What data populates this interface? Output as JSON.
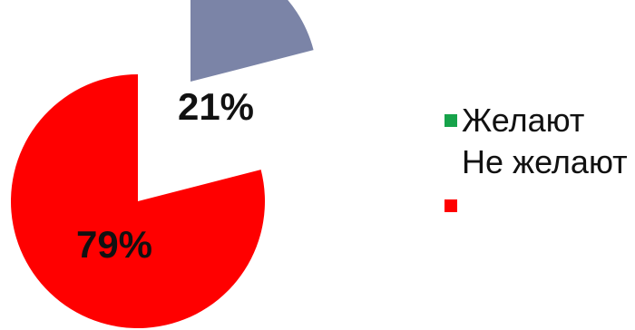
{
  "chart_data": {
    "type": "pie",
    "labels": [
      "Желают",
      "Не желают"
    ],
    "values": [
      21,
      79
    ],
    "data_labels": [
      "21%",
      "79%"
    ],
    "colors": {
      "slices": [
        "#7b84a7",
        "#ff0000"
      ],
      "legend_swatches": [
        "#16a34a",
        "#ff0000"
      ]
    },
    "exploded": true,
    "legend_placement": "right"
  },
  "legend": {
    "items": [
      {
        "label": "Желают"
      },
      {
        "label": "Не желают"
      }
    ]
  }
}
